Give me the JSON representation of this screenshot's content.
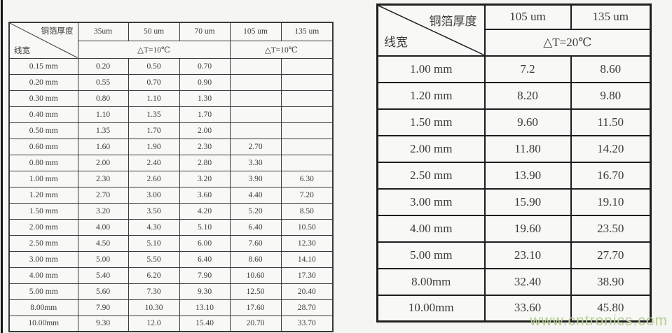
{
  "chart_data": [
    {
      "type": "table",
      "title": "铜箔厚度/线宽 载流表 △T=10℃",
      "corner": {
        "top": "铜箔厚度",
        "bottom": "线宽"
      },
      "columns": [
        "35um",
        "50 um",
        "70 um",
        "105 um",
        "135 um"
      ],
      "delta_t_groups": [
        {
          "label": "△T=10℃",
          "span": 3
        },
        {
          "label": "△T=10℃",
          "span": 2
        }
      ],
      "rows": [
        {
          "width": "0.15 mm",
          "values": [
            "0.20",
            "0.50",
            "0.70",
            "",
            ""
          ]
        },
        {
          "width": "0.20 mm",
          "values": [
            "0.55",
            "0.70",
            "0.90",
            "",
            ""
          ]
        },
        {
          "width": "0.30 mm",
          "values": [
            "0.80",
            "1.10",
            "1.30",
            "",
            ""
          ]
        },
        {
          "width": "0.40 mm",
          "values": [
            "1.10",
            "1.35",
            "1.70",
            "",
            ""
          ]
        },
        {
          "width": "0.50 mm",
          "values": [
            "1.35",
            "1.70",
            "2.00",
            "",
            ""
          ]
        },
        {
          "width": "0.60 mm",
          "values": [
            "1.60",
            "1.90",
            "2.30",
            "2.70",
            ""
          ]
        },
        {
          "width": "0.80 mm",
          "values": [
            "2.00",
            "2.40",
            "2.80",
            "3.30",
            ""
          ]
        },
        {
          "width": "1.00 mm",
          "values": [
            "2.30",
            "2.60",
            "3.20",
            "3.90",
            "6.30"
          ]
        },
        {
          "width": "1.20 mm",
          "values": [
            "2.70",
            "3.00",
            "3.60",
            "4.40",
            "7.20"
          ]
        },
        {
          "width": "1.50 mm",
          "values": [
            "3.20",
            "3.50",
            "4.20",
            "5.20",
            "8.50"
          ]
        },
        {
          "width": "2.00 mm",
          "values": [
            "4.00",
            "4.30",
            "5.10",
            "6.40",
            "10.50"
          ]
        },
        {
          "width": "2.50 mm",
          "values": [
            "4.50",
            "5.10",
            "6.00",
            "7.60",
            "12.30"
          ]
        },
        {
          "width": "3.00 mm",
          "values": [
            "5.00",
            "5.50",
            "6.40",
            "8.60",
            "14.10"
          ]
        },
        {
          "width": "4.00 mm",
          "values": [
            "5.40",
            "6.20",
            "7.90",
            "10.60",
            "17.30"
          ]
        },
        {
          "width": "5.00 mm",
          "values": [
            "5.60",
            "7.30",
            "9.30",
            "12.50",
            "20.40"
          ]
        },
        {
          "width": "8.00mm",
          "values": [
            "7.90",
            "10.30",
            "13.10",
            "17.60",
            "28.70"
          ]
        },
        {
          "width": "10.00mm",
          "values": [
            "9.30",
            "12.0",
            "15.40",
            "20.70",
            "33.70"
          ]
        }
      ]
    },
    {
      "type": "table",
      "title": "铜箔厚度/线宽 载流表 △T=20℃",
      "corner": {
        "top": "铜箔厚度",
        "bottom": "线宽"
      },
      "columns": [
        "105 um",
        "135 um"
      ],
      "delta_t": "△T=20℃",
      "rows": [
        {
          "width": "1.00 mm",
          "values": [
            "7.2",
            "8.60"
          ]
        },
        {
          "width": "1.20 mm",
          "values": [
            "8.20",
            "9.80"
          ]
        },
        {
          "width": "1.50 mm",
          "values": [
            "9.60",
            "11.50"
          ]
        },
        {
          "width": "2.00 mm",
          "values": [
            "11.80",
            "14.20"
          ]
        },
        {
          "width": "2.50 mm",
          "values": [
            "13.90",
            "16.70"
          ]
        },
        {
          "width": "3.00 mm",
          "values": [
            "15.90",
            "19.10"
          ]
        },
        {
          "width": "4.00 mm",
          "values": [
            "19.60",
            "23.50"
          ]
        },
        {
          "width": "5.00 mm",
          "values": [
            "23.10",
            "27.70"
          ]
        },
        {
          "width": "8.00mm",
          "values": [
            "32.40",
            "38.90"
          ]
        },
        {
          "width": "10.00mm",
          "values": [
            "33.60",
            "45.80"
          ]
        }
      ]
    }
  ],
  "watermark": "www.cntronics.com",
  "colors": {
    "background": "#f5f5f3",
    "table_fill": "#f8f8f6",
    "border_left_table": "#3a3a3a",
    "border_right_table": "#1e1e1e",
    "text": "#3b3b3b",
    "watermark": "#b7cf92"
  }
}
